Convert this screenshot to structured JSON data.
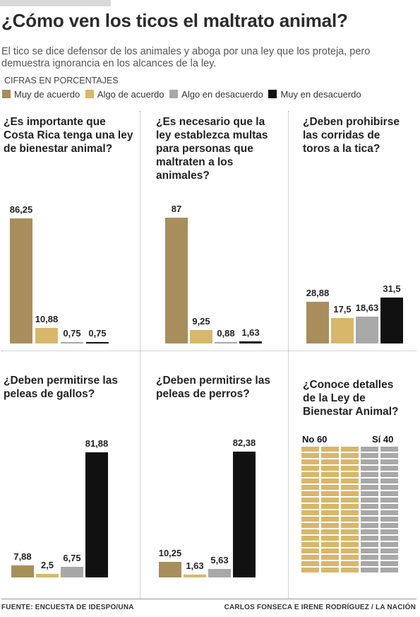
{
  "title": "¿Cómo ven los ticos el maltrato animal?",
  "subtitle": "El tico se dice defensor de los animales y aboga por una ley que los proteja, pero demuestra ignorancia en los alcances de la ley.",
  "units_label": "CIFRAS EN PORCENTAJES",
  "legend": [
    {
      "label": "Muy de acuerdo",
      "color": "#a88e5a"
    },
    {
      "label": "Algo de acuerdo",
      "color": "#d8b76a"
    },
    {
      "label": "Algo en desacuerdo",
      "color": "#a8a8a8"
    },
    {
      "label": "Muy en desacuerdo",
      "color": "#111111"
    }
  ],
  "chart_data": [
    {
      "type": "bar",
      "title": "¿Es importante que Costa Rica tenga una ley de bienestar animal?",
      "categories": [
        "Muy de acuerdo",
        "Algo de acuerdo",
        "Algo en desacuerdo",
        "Muy en desacuerdo"
      ],
      "values": [
        86.25,
        10.88,
        0.75,
        0.75
      ],
      "labels": [
        "86,25",
        "10,88",
        "0,75",
        "0,75"
      ],
      "ylim": [
        0,
        100
      ]
    },
    {
      "type": "bar",
      "title": "¿Es necesario que la ley establezca multas para personas que maltraten a los animales?",
      "categories": [
        "Muy de acuerdo",
        "Algo de acuerdo",
        "Algo en desacuerdo",
        "Muy en desacuerdo"
      ],
      "values": [
        87,
        9.25,
        0.88,
        1.63
      ],
      "labels": [
        "87",
        "9,25",
        "0,88",
        "1,63"
      ],
      "ylim": [
        0,
        100
      ]
    },
    {
      "type": "bar",
      "title": "¿Deben prohibirse las corridas de toros a la tica?",
      "categories": [
        "Muy de acuerdo",
        "Algo de acuerdo",
        "Algo en desacuerdo",
        "Muy en desacuerdo"
      ],
      "values": [
        28.88,
        17.5,
        18.63,
        31.5
      ],
      "labels": [
        "28,88",
        "17,5",
        "18,63",
        "31,5"
      ],
      "ylim": [
        0,
        100
      ]
    },
    {
      "type": "bar",
      "title": "¿Deben permitirse las peleas de gallos?",
      "categories": [
        "Muy de acuerdo",
        "Algo de acuerdo",
        "Algo en desacuerdo",
        "Muy en desacuerdo"
      ],
      "values": [
        7.88,
        2.5,
        6.75,
        81.88
      ],
      "labels": [
        "7,88",
        "2,5",
        "6,75",
        "81,88"
      ],
      "ylim": [
        0,
        100
      ]
    },
    {
      "type": "bar",
      "title": "¿Deben permitirse las peleas de perros?",
      "categories": [
        "Muy de acuerdo",
        "Algo de acuerdo",
        "Algo en desacuerdo",
        "Muy en desacuerdo"
      ],
      "values": [
        10.25,
        1.63,
        5.63,
        82.38
      ],
      "labels": [
        "10,25",
        "1,63",
        "5,63",
        "82,38"
      ],
      "ylim": [
        0,
        100
      ]
    },
    {
      "type": "waffle",
      "title": "¿Conoce detalles de la Ley de Bienestar Animal?",
      "categories": [
        "No",
        "Sí"
      ],
      "values": [
        60,
        40
      ],
      "labels": [
        "No 60",
        "Sí 40"
      ],
      "colors": [
        "#d8b76a",
        "#a8a8a8"
      ]
    }
  ],
  "footer": {
    "source": "FUENTE: ENCUESTA DE IDESPO/UNA",
    "credit": "CARLOS FONSECA E IRENE RODRÍGUEZ / LA NACIÓN"
  }
}
